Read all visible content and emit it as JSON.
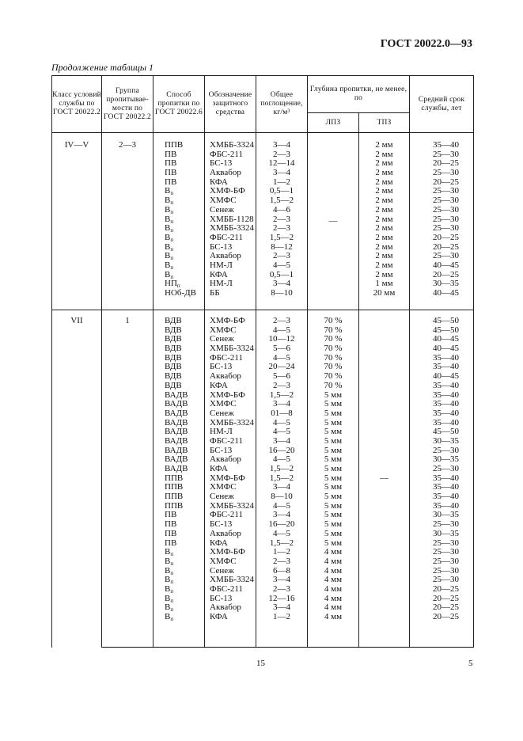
{
  "header": {
    "doc_code": "ГОСТ 20022.0—93",
    "continuation": "Продолжение таблицы 1"
  },
  "table": {
    "columns": {
      "class": "Класс условий службы по ГОСТ 20022.2",
      "group": "Группа пропитывае-мости по ГОСТ 20022.2",
      "method": "Способ пропитки по ГОСТ 20022.6",
      "agent": "Обозначение защитного средства",
      "absorption": "Общее поглощение, кг/м³",
      "depth": "Глубина пропитки, не менее, по",
      "lpz": "ЛПЗ",
      "tpz": "ТПЗ",
      "life": "Средний срок службы, лет"
    },
    "sections": [
      {
        "class": "IV—V",
        "group": "2—3",
        "dash_column": "lpz",
        "dash": "—",
        "rows": [
          {
            "m": "ППВ",
            "s": "",
            "a": "ХМББ-3324",
            "ab": "3—4",
            "v": "2 мм",
            "l": "35—40"
          },
          {
            "m": "ПВ",
            "s": "",
            "a": "ФБС-211",
            "ab": "2—3",
            "v": "2 мм",
            "l": "25—30"
          },
          {
            "m": "ПВ",
            "s": "",
            "a": "БС-13",
            "ab": "12—14",
            "v": "2 мм",
            "l": "20—25"
          },
          {
            "m": "ПВ",
            "s": "",
            "a": "Аквабор",
            "ab": "3—4",
            "v": "2 мм",
            "l": "25—30"
          },
          {
            "m": "ПВ",
            "s": "",
            "a": "КФА",
            "ab": "1—2",
            "v": "2 мм",
            "l": "20—25"
          },
          {
            "m": "В",
            "s": "п",
            "a": "ХМФ-БФ",
            "ab": "0,5—1",
            "v": "2 мм",
            "l": "25—30"
          },
          {
            "m": "В",
            "s": "п",
            "a": "ХМФС",
            "ab": "1,5—2",
            "v": "2 мм",
            "l": "25—30"
          },
          {
            "m": "В",
            "s": "п",
            "a": "Сенеж",
            "ab": "4—6",
            "v": "2 мм",
            "l": "25—30"
          },
          {
            "m": "В",
            "s": "п",
            "a": "ХМББ-1128",
            "ab": "2—3",
            "v": "2 мм",
            "l": "25—30"
          },
          {
            "m": "В",
            "s": "п",
            "a": "ХМББ-3324",
            "ab": "2—3",
            "v": "2 мм",
            "l": "25—30"
          },
          {
            "m": "В",
            "s": "п",
            "a": "ФБС-211",
            "ab": "1,5—2",
            "v": "2 мм",
            "l": "20—25"
          },
          {
            "m": "В",
            "s": "п",
            "a": "БС-13",
            "ab": "8—12",
            "v": "2 мм",
            "l": "20—25"
          },
          {
            "m": "В",
            "s": "п",
            "a": "Аквабор",
            "ab": "2—3",
            "v": "2 мм",
            "l": "25—30"
          },
          {
            "m": "В",
            "s": "п",
            "a": "НМ-Л",
            "ab": "4—5",
            "v": "2 мм",
            "l": "40—45"
          },
          {
            "m": "В",
            "s": "п",
            "a": "КФА",
            "ab": "0,5—1",
            "v": "2 мм",
            "l": "20—25"
          },
          {
            "m": "НП",
            "s": "п",
            "a": "НМ-Л",
            "ab": "3—4",
            "v": "1 мм",
            "l": "30—35"
          },
          {
            "m": "НОб-ДВ",
            "s": "",
            "a": "ББ",
            "ab": "8—10",
            "v": "20 мм",
            "l": "40—45"
          }
        ]
      },
      {
        "class": "VII",
        "group": "1",
        "dash_column": "tpz",
        "dash": "—",
        "rows": [
          {
            "m": "ВДВ",
            "s": "",
            "a": "ХМФ-БФ",
            "ab": "2—3",
            "v": "70 %",
            "l": "45—50"
          },
          {
            "m": "ВДВ",
            "s": "",
            "a": "ХМФС",
            "ab": "4—5",
            "v": "70 %",
            "l": "45—50"
          },
          {
            "m": "ВДВ",
            "s": "",
            "a": "Сенеж",
            "ab": "10—12",
            "v": "70 %",
            "l": "40—45"
          },
          {
            "m": "ВДВ",
            "s": "",
            "a": "ХМББ-3324",
            "ab": "5—6",
            "v": "70 %",
            "l": "40—45"
          },
          {
            "m": "ВДВ",
            "s": "",
            "a": "ФБС-211",
            "ab": "4—5",
            "v": "70 %",
            "l": "35—40"
          },
          {
            "m": "ВДВ",
            "s": "",
            "a": "БС-13",
            "ab": "20—24",
            "v": "70 %",
            "l": "35—40"
          },
          {
            "m": "ВДВ",
            "s": "",
            "a": "Аквабор",
            "ab": "5—6",
            "v": "70 %",
            "l": "40—45"
          },
          {
            "m": "ВДВ",
            "s": "",
            "a": "КФА",
            "ab": "2—3",
            "v": "70 %",
            "l": "35—40"
          },
          {
            "m": "ВАДВ",
            "s": "",
            "a": "ХМФ-БФ",
            "ab": "1,5—2",
            "v": "5 мм",
            "l": "35—40"
          },
          {
            "m": "ВАДВ",
            "s": "",
            "a": "ХМФС",
            "ab": "3—4",
            "v": "5 мм",
            "l": "35—40"
          },
          {
            "m": "ВАДВ",
            "s": "",
            "a": "Сенеж",
            "ab": "01—8",
            "v": "5 мм",
            "l": "35—40"
          },
          {
            "m": "ВАДВ",
            "s": "",
            "a": "ХМББ-3324",
            "ab": "4—5",
            "v": "5 мм",
            "l": "35—40"
          },
          {
            "m": "ВАДВ",
            "s": "",
            "a": "НМ-Л",
            "ab": "4—5",
            "v": "5 мм",
            "l": "45—50"
          },
          {
            "m": "ВАДВ",
            "s": "",
            "a": "ФБС-211",
            "ab": "3—4",
            "v": "5 мм",
            "l": "30—35"
          },
          {
            "m": "ВАДВ",
            "s": "",
            "a": "БС-13",
            "ab": "16—20",
            "v": "5 мм",
            "l": "25—30"
          },
          {
            "m": "ВАДВ",
            "s": "",
            "a": "Аквабор",
            "ab": "4—5",
            "v": "5 мм",
            "l": "30—35"
          },
          {
            "m": "ВАДВ",
            "s": "",
            "a": "КФА",
            "ab": "1,5—2",
            "v": "5 мм",
            "l": "25—30"
          },
          {
            "m": "ППВ",
            "s": "",
            "a": "ХМФ-БФ",
            "ab": "1,5—2",
            "v": "5 мм",
            "l": "35—40"
          },
          {
            "m": "ППВ",
            "s": "",
            "a": "ХМФС",
            "ab": "3—4",
            "v": "5 мм",
            "l": "35—40"
          },
          {
            "m": "ППВ",
            "s": "",
            "a": "Сенеж",
            "ab": "8—10",
            "v": "5 мм",
            "l": "35—40"
          },
          {
            "m": "ППВ",
            "s": "",
            "a": "ХМББ-3324",
            "ab": "4—5",
            "v": "5 мм",
            "l": "35—40"
          },
          {
            "m": "ПВ",
            "s": "",
            "a": "ФБС-211",
            "ab": "3—4",
            "v": "5 мм",
            "l": "30—35"
          },
          {
            "m": "ПВ",
            "s": "",
            "a": "БС-13",
            "ab": "16—20",
            "v": "5 мм",
            "l": "25—30"
          },
          {
            "m": "ПВ",
            "s": "",
            "a": "Аквабор",
            "ab": "4—5",
            "v": "5 мм",
            "l": "30—35"
          },
          {
            "m": "ПВ",
            "s": "",
            "a": "КФА",
            "ab": "1,5—2",
            "v": "5 мм",
            "l": "25—30"
          },
          {
            "m": "В",
            "s": "п",
            "a": "ХМФ-БФ",
            "ab": "1—2",
            "v": "4 мм",
            "l": "25—30"
          },
          {
            "m": "В",
            "s": "п",
            "a": "ХМФС",
            "ab": "2—3",
            "v": "4 мм",
            "l": "25—30"
          },
          {
            "m": "В",
            "s": "п",
            "a": "Сенеж",
            "ab": "6—8",
            "v": "4 мм",
            "l": "25—30"
          },
          {
            "m": "В",
            "s": "п",
            "a": "ХМББ-3324",
            "ab": "3—4",
            "v": "4 мм",
            "l": "25—30"
          },
          {
            "m": "В",
            "s": "п",
            "a": "ФБС-211",
            "ab": "2—3",
            "v": "4 мм",
            "l": "20—25"
          },
          {
            "m": "В",
            "s": "п",
            "a": "БС-13",
            "ab": "12—16",
            "v": "4 мм",
            "l": "20—25"
          },
          {
            "m": "В",
            "s": "п",
            "a": "Аквабор",
            "ab": "3—4",
            "v": "4 мм",
            "l": "20—25"
          },
          {
            "m": "В",
            "s": "п",
            "a": "КФА",
            "ab": "1—2",
            "v": "4 мм",
            "l": "20—25"
          }
        ]
      }
    ]
  },
  "footer": {
    "page_center": "15",
    "page_right": "5"
  }
}
